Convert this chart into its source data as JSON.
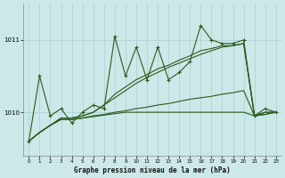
{
  "title": "Graphe pression niveau de la mer (hPa)",
  "bg_color": "#cce8e8",
  "line_color": "#2d5a1b",
  "grid_color": "#aad0d0",
  "ylim": [
    1009.4,
    1011.5
  ],
  "yticks": [
    1010,
    1011
  ],
  "xlim": [
    -0.5,
    23.5
  ],
  "xticks": [
    0,
    1,
    2,
    3,
    4,
    5,
    6,
    7,
    8,
    9,
    10,
    11,
    12,
    13,
    14,
    15,
    16,
    17,
    18,
    19,
    20,
    21,
    22,
    23
  ],
  "series1_main": [
    1009.6,
    1010.5,
    1009.95,
    1010.05,
    1009.85,
    1010.0,
    1010.1,
    1010.05,
    1011.05,
    1010.5,
    1010.9,
    1010.45,
    1010.9,
    1010.45,
    1010.55,
    1010.7,
    1011.2,
    1011.0,
    1010.95,
    1010.95,
    1011.0,
    1009.95,
    1010.05,
    1010.0
  ],
  "series2_rise1": [
    1009.6,
    1009.72,
    1009.82,
    1009.92,
    1009.92,
    1009.95,
    1010.0,
    1010.1,
    1010.25,
    1010.35,
    1010.45,
    1010.52,
    1010.6,
    1010.65,
    1010.72,
    1010.78,
    1010.85,
    1010.88,
    1010.92,
    1010.92,
    1010.95,
    1009.95,
    1010.0,
    1010.0
  ],
  "series3_rise2": [
    1009.6,
    1009.72,
    1009.82,
    1009.92,
    1009.92,
    1009.95,
    1010.0,
    1010.1,
    1010.2,
    1010.3,
    1010.4,
    1010.48,
    1010.55,
    1010.62,
    1010.68,
    1010.74,
    1010.8,
    1010.85,
    1010.9,
    1010.92,
    1010.95,
    1009.95,
    1010.0,
    1010.0
  ],
  "series4_flat": [
    1009.6,
    1009.72,
    1009.82,
    1009.9,
    1009.9,
    1009.92,
    1009.95,
    1009.97,
    1010.0,
    1010.02,
    1010.05,
    1010.07,
    1010.1,
    1010.12,
    1010.15,
    1010.18,
    1010.2,
    1010.22,
    1010.25,
    1010.27,
    1010.3,
    1009.95,
    1009.97,
    1010.0
  ],
  "series5_verflat": [
    1009.6,
    1009.72,
    1009.82,
    1009.9,
    1009.9,
    1009.92,
    1009.94,
    1009.96,
    1009.98,
    1010.0,
    1010.0,
    1010.0,
    1010.0,
    1010.0,
    1010.0,
    1010.0,
    1010.0,
    1010.0,
    1010.0,
    1010.0,
    1010.0,
    1009.95,
    1009.97,
    1010.0
  ]
}
